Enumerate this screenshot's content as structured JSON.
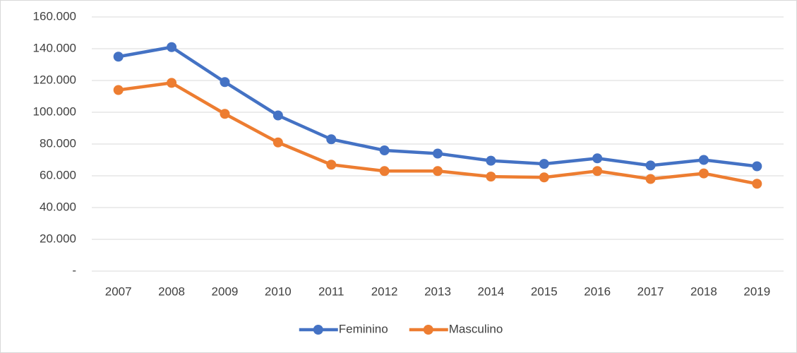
{
  "chart_data": {
    "type": "line",
    "categories": [
      "2007",
      "2008",
      "2009",
      "2010",
      "2011",
      "2012",
      "2013",
      "2014",
      "2015",
      "2016",
      "2017",
      "2018",
      "2019"
    ],
    "series": [
      {
        "name": "Feminino",
        "color": "#4472c4",
        "values": [
          135000,
          141000,
          119000,
          98000,
          83000,
          76000,
          74000,
          69500,
          67500,
          71000,
          66500,
          70000,
          66000
        ]
      },
      {
        "name": "Masculino",
        "color": "#ed7d31",
        "values": [
          114000,
          118500,
          99000,
          81000,
          67000,
          63000,
          63000,
          59500,
          59000,
          63000,
          58000,
          61500,
          55000
        ]
      }
    ],
    "ylim": [
      0,
      160000
    ],
    "yticks": [
      {
        "value": 0,
        "label": "-"
      },
      {
        "value": 20000,
        "label": "20.000"
      },
      {
        "value": 40000,
        "label": "40.000"
      },
      {
        "value": 60000,
        "label": "60.000"
      },
      {
        "value": 80000,
        "label": "80.000"
      },
      {
        "value": 100000,
        "label": "100.000"
      },
      {
        "value": 120000,
        "label": "120.000"
      },
      {
        "value": 140000,
        "label": "140.000"
      },
      {
        "value": 160000,
        "label": "160.000"
      }
    ],
    "grid": true,
    "legend": "bottom"
  }
}
